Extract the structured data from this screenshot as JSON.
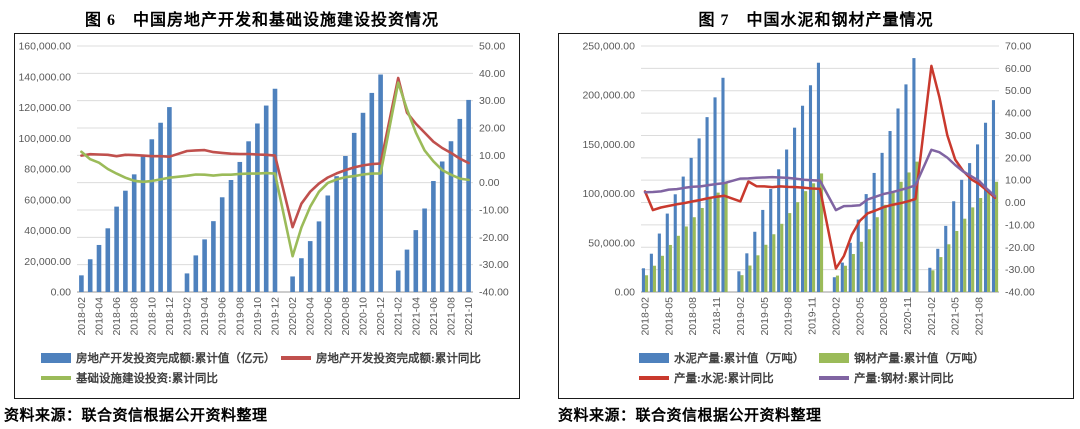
{
  "page": {
    "background": "#ffffff"
  },
  "figures": [
    {
      "title": "图 6　中国房地产开发和基础设施建设投资情况",
      "source": "资料来源：联合资信根据公开资料整理"
    },
    {
      "title": "图 7　中国水泥和钢材产量情况",
      "source": "资料来源：联合资信根据公开资料整理"
    }
  ],
  "chart_data": [
    {
      "type": "bar",
      "subtype": "combo-bar-line-dual-axis",
      "title": "图 6　中国房地产开发和基础设施建设投资情况",
      "x": [
        "2018-02",
        "2018-03",
        "2018-04",
        "2018-05",
        "2018-06",
        "2018-07",
        "2018-08",
        "2018-09",
        "2018-10",
        "2018-11",
        "2018-12",
        "2019-01",
        "2019-02",
        "2019-03",
        "2019-04",
        "2019-05",
        "2019-06",
        "2019-07",
        "2019-08",
        "2019-09",
        "2019-10",
        "2019-11",
        "2019-12",
        "2020-01",
        "2020-02",
        "2020-03",
        "2020-04",
        "2020-05",
        "2020-06",
        "2020-07",
        "2020-08",
        "2020-09",
        "2020-10",
        "2020-11",
        "2020-12",
        "2021-01",
        "2021-02",
        "2021-03",
        "2021-04",
        "2021-05",
        "2021-06",
        "2021-07",
        "2021-08",
        "2021-09",
        "2021-10"
      ],
      "x_tick_indices": [
        0,
        2,
        4,
        6,
        8,
        10,
        12,
        14,
        16,
        18,
        20,
        22,
        24,
        26,
        28,
        30,
        32,
        34,
        36,
        38,
        40,
        42,
        44
      ],
      "left_axis": {
        "min": 0,
        "max": 160000,
        "ticks": [
          "160,000.00",
          "140,000.00",
          "120,000.00",
          "100,000.00",
          "80,000.00",
          "60,000.00",
          "40,000.00",
          "20,000.00",
          "0.00"
        ]
      },
      "right_axis": {
        "min": -40,
        "max": 50,
        "ticks": [
          "50.00",
          "40.00",
          "30.00",
          "20.00",
          "10.00",
          "0.00",
          "-10.00",
          "-20.00",
          "-30.00",
          "-40.00"
        ]
      },
      "grid": true,
      "legend_position": "bottom",
      "bar_series": [
        {
          "name": "房地产开发投资完成额:累计值（亿元）",
          "color": "#4e81bd",
          "axis": "left",
          "values": [
            10831,
            21292,
            30592,
            41420,
            55531,
            65886,
            76519,
            88665,
            99325,
            110083,
            120264,
            null,
            12090,
            23803,
            34217,
            46075,
            61609,
            72843,
            84589,
            98008,
            109603,
            121265,
            132194,
            null,
            10115,
            21963,
            33103,
            45920,
            62780,
            75325,
            88454,
            103484,
            116556,
            129492,
            141443,
            null,
            13986,
            27576,
            40240,
            54318,
            72179,
            84895,
            98060,
            112568,
            124934
          ]
        }
      ],
      "line_series": [
        {
          "name": "房地产开发投资完成额:累计同比",
          "color": "#c0504d",
          "axis": "right",
          "values": [
            9.9,
            10.4,
            10.3,
            10.2,
            9.7,
            10.2,
            10.1,
            9.9,
            9.7,
            9.7,
            9.5,
            null,
            11.6,
            11.8,
            11.9,
            11.2,
            10.9,
            10.6,
            10.5,
            10.5,
            10.3,
            10.2,
            9.9,
            null,
            -16.3,
            -7.7,
            -3.3,
            -0.3,
            1.9,
            3.4,
            4.6,
            5.6,
            6.3,
            6.8,
            7.0,
            null,
            38.3,
            25.6,
            21.6,
            18.3,
            15.0,
            12.7,
            10.9,
            8.8,
            7.2
          ]
        },
        {
          "name": "基础设施建设投资:累计同比",
          "color": "#9bbb59",
          "axis": "right",
          "values": [
            11.3,
            8.6,
            7.3,
            5.0,
            3.3,
            1.8,
            0.7,
            0.3,
            0.6,
            1.2,
            1.8,
            null,
            2.5,
            3.0,
            2.9,
            2.6,
            2.9,
            2.9,
            3.2,
            3.3,
            3.3,
            3.5,
            3.3,
            null,
            -26.9,
            -16.4,
            -8.8,
            -3.3,
            -0.1,
            1.2,
            2.0,
            2.4,
            3.0,
            3.3,
            3.4,
            null,
            36.6,
            26.8,
            18.4,
            11.8,
            7.8,
            4.6,
            2.9,
            1.5,
            1.0
          ]
        }
      ],
      "legend_rows": [
        [
          {
            "type": "bar",
            "color": "#4e81bd",
            "label": "房地产开发投资完成额:累计值（亿元）"
          },
          {
            "type": "line",
            "color": "#c0504d",
            "label": "房地产开发投资完成额:累计同比"
          }
        ],
        [
          {
            "type": "line",
            "color": "#9bbb59",
            "label": "基础设施建设投资:累计同比"
          }
        ]
      ]
    },
    {
      "type": "bar",
      "subtype": "combo-bar-line-dual-axis",
      "title": "图 7　中国水泥和钢材产量情况",
      "x": [
        "2018-02",
        "2018-03",
        "2018-04",
        "2018-05",
        "2018-06",
        "2018-07",
        "2018-08",
        "2018-09",
        "2018-10",
        "2018-11",
        "2018-12",
        "2019-01",
        "2019-02",
        "2019-03",
        "2019-04",
        "2019-05",
        "2019-06",
        "2019-07",
        "2019-08",
        "2019-09",
        "2019-10",
        "2019-11",
        "2019-12",
        "2020-01",
        "2020-02",
        "2020-03",
        "2020-04",
        "2020-05",
        "2020-06",
        "2020-07",
        "2020-08",
        "2020-09",
        "2020-10",
        "2020-11",
        "2020-12",
        "2021-01",
        "2021-02",
        "2021-03",
        "2021-04",
        "2021-05",
        "2021-06",
        "2021-07",
        "2021-08",
        "2021-09",
        "2021-10"
      ],
      "x_tick_indices": [
        0,
        3,
        6,
        9,
        12,
        15,
        18,
        21,
        24,
        27,
        30,
        33,
        36,
        39,
        42
      ],
      "left_axis": {
        "min": 0,
        "max": 250000,
        "ticks": [
          "250,000.00",
          "200,000.00",
          "150,000.00",
          "100,000.00",
          "50,000.00",
          "0.00"
        ]
      },
      "right_axis": {
        "min": -40,
        "max": 70,
        "ticks": [
          "70.00",
          "60.00",
          "50.00",
          "40.00",
          "30.00",
          "20.00",
          "10.00",
          "0.00",
          "-10.00",
          "-20.00",
          "-30.00",
          "-40.00"
        ]
      },
      "grid": true,
      "legend_position": "bottom",
      "bar_series": [
        {
          "name": "水泥产量:累计值（万吨）",
          "color": "#4e81bd",
          "axis": "left",
          "values": [
            24100,
            38900,
            59400,
            79700,
            99300,
            117300,
            136300,
            156100,
            177700,
            197800,
            217700,
            null,
            21000,
            39300,
            61200,
            83400,
            104700,
            124700,
            144800,
            167000,
            189300,
            210100,
            233000,
            null,
            15000,
            29900,
            50000,
            73600,
            99500,
            121000,
            141400,
            163600,
            186500,
            211000,
            237700,
            null,
            24600,
            43900,
            67200,
            92200,
            114000,
            131000,
            150000,
            172000,
            195000
          ]
        },
        {
          "name": "钢材产量:累计值（万吨）",
          "color": "#9bbb59",
          "axis": "left",
          "values": [
            17000,
            26700,
            36800,
            47800,
            57100,
            66600,
            76000,
            85400,
            95000,
            101000,
            110600,
            null,
            17100,
            26900,
            37300,
            48000,
            58700,
            69300,
            80200,
            91300,
            102500,
            110500,
            120500,
            null,
            16700,
            26700,
            38600,
            51000,
            63800,
            76000,
            88600,
            100900,
            112000,
            121500,
            132500,
            null,
            22000,
            35500,
            48500,
            62000,
            74500,
            86000,
            95500,
            104000,
            112000
          ]
        }
      ],
      "line_series": [
        {
          "name": "产量:水泥:累计同比",
          "color": "#c9392d",
          "axis": "right",
          "values": [
            5.0,
            -3.4,
            -2.2,
            -1.5,
            -0.8,
            -0.2,
            0.5,
            1.2,
            2.0,
            2.6,
            3.0,
            null,
            0.5,
            9.4,
            7.3,
            7.2,
            6.9,
            7.2,
            7.0,
            6.9,
            6.6,
            6.3,
            6.1,
            null,
            -29.5,
            -23.9,
            -14.4,
            -8.2,
            -4.8,
            -3.5,
            -2.1,
            -1.1,
            -0.4,
            0.5,
            1.6,
            null,
            61.1,
            47.3,
            30.1,
            19.2,
            14.1,
            10.4,
            8.3,
            5.3,
            2.1
          ]
        },
        {
          "name": "产量:钢材:累计同比",
          "color": "#8064a2",
          "axis": "right",
          "values": [
            4.6,
            4.7,
            5.0,
            5.8,
            6.0,
            6.6,
            7.1,
            7.2,
            7.8,
            8.3,
            8.7,
            null,
            10.7,
            10.8,
            11.1,
            11.2,
            11.4,
            11.2,
            11.0,
            10.6,
            10.2,
            10.0,
            9.8,
            null,
            -3.4,
            -1.6,
            -1.5,
            -1.2,
            1.4,
            2.6,
            3.8,
            4.6,
            5.5,
            6.5,
            7.7,
            null,
            23.6,
            22.5,
            20.1,
            16.8,
            13.9,
            11.8,
            9.7,
            6.0,
            2.8
          ]
        }
      ],
      "legend_rows": [
        [
          {
            "type": "bar",
            "color": "#4e81bd",
            "label": "水泥产量:累计值（万吨）"
          },
          {
            "type": "bar",
            "color": "#9bbb59",
            "label": "钢材产量:累计值（万吨）"
          }
        ],
        [
          {
            "type": "line",
            "color": "#c9392d",
            "label": "产量:水泥:累计同比"
          },
          {
            "type": "line",
            "color": "#8064a2",
            "label": "产量:钢材:累计同比"
          }
        ]
      ]
    }
  ]
}
